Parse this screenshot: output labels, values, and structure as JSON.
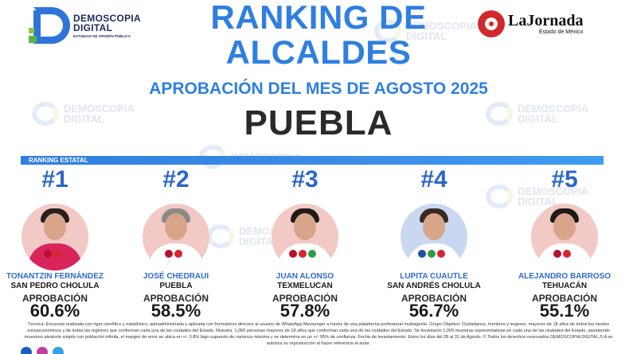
{
  "brand_left": {
    "line1": "DEMOSCOPIA",
    "line2": "DIGITAL",
    "tagline": "ESTUDIOS DE OPINIÓN PÚBLICA"
  },
  "brand_right": {
    "name": "LaJornada",
    "subtitle": "Estado de México"
  },
  "watermark": {
    "line1": "DEMOSCOPIA",
    "line2": "DIGITAL",
    "tagline": "ESTUDIOS DE OPINIÓN PÚBLICA"
  },
  "header": {
    "title_line1": "RANKING DE",
    "title_line2": "ALCALDES",
    "subtitle": "APROBACIÓN DEL MES DE AGOSTO 2025",
    "state": "PUEBLA"
  },
  "ranking_label": "RANKING ESTATAL",
  "candidates": [
    {
      "rank": "#1",
      "name": "TONANTZIN FERNÁNDEZ",
      "city": "SAN PEDRO CHOLULA",
      "approval_label": "APROBACIÓN",
      "approval": "60.6%",
      "approval_value": 60.6,
      "photo_bg": "#f2c9c4",
      "hair": "#2a1f1c",
      "torso": "#d9245c",
      "badges": [
        "#b3122c",
        "#d8242c"
      ]
    },
    {
      "rank": "#2",
      "name": "JOSÉ CHEDRAUI",
      "city": "PUEBLA",
      "approval_label": "APROBACIÓN",
      "approval": "58.5%",
      "approval_value": 58.5,
      "photo_bg": "#f2c9c4",
      "hair": "#8a8a8a",
      "torso": "#ffffff",
      "badges": [
        "#b3122c",
        "#d8242c"
      ]
    },
    {
      "rank": "#3",
      "name": "JUAN ALONSO",
      "city": "TEXMELUCAN",
      "approval_label": "APROBACIÓN",
      "approval": "57.8%",
      "approval_value": 57.8,
      "photo_bg": "#f2c9c4",
      "hair": "#1f1a18",
      "torso": "#ffffff",
      "badges": [
        "#b3122c",
        "#d8242c",
        "#2e9e44"
      ]
    },
    {
      "rank": "#4",
      "name": "LUPITA CUAUTLE",
      "city": "SAN ANDRÉS CHOLULA",
      "approval_label": "APROBACIÓN",
      "approval": "56.7%",
      "approval_value": 56.7,
      "photo_bg": "#c9d8f0",
      "hair": "#3a2a22",
      "torso": "#ffffff",
      "badges": [
        "#1f4fa8",
        "#2e9e44",
        "#d8242c"
      ]
    },
    {
      "rank": "#5",
      "name": "ALEJANDRO BARROSO",
      "city": "TEHUACÁN",
      "approval_label": "APROBACIÓN",
      "approval": "55.1%",
      "approval_value": 55.1,
      "photo_bg": "#f2c9c4",
      "hair": "#1f1a18",
      "torso": "#ffffff",
      "badges": [
        "#b3122c",
        "#d8242c"
      ]
    }
  ],
  "footer": {
    "note": "Técnica: Encuesta realizada con rigor científico y estadístico, autoadministrada y aplicada con formularios directos al usuario de WhatsApp Messenger a través de una plataforma profesional multiagente. Grupo Objetivo: Ciudadanos, hombres y mujeres, mayores de 18 años de todos los niveles socioeconómicos y de todas las regiones que conforman cada una de las ciudades del Estado. Muestra: 1,000 personas mayores de 18 años que conforman cada una de las ciudades del Estado. Se levantaron 1,000 muestras representativas en cada una de las ciudades del Estado, asumiendo muestreo aleatorio simple con población infinita, el margen de error se ubica en +/- 3.8% bajo supuesto de varianza máxima y se determina en un +/- 95% de confianza. Fecha de levantamiento: Entre los días del 28 al 31 de Agosto. © Todos los derechos reservados DEMOSCOPIA DIGITAL,S.A se autoriza su reproducción al hacer referencia al autor."
  }
}
